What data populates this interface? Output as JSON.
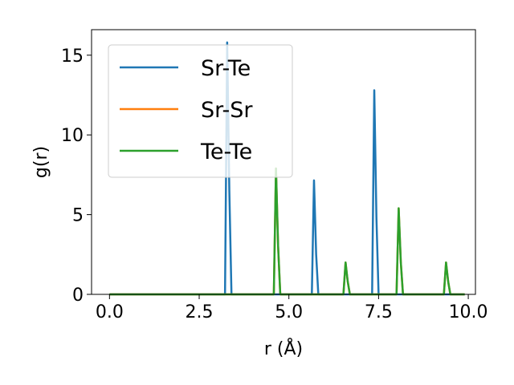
{
  "chart_data": {
    "type": "line",
    "xlabel": "r (Å)",
    "ylabel": "g(r)",
    "xlim": [
      -0.5,
      10.2
    ],
    "ylim": [
      0,
      16.6
    ],
    "x_ticks": [
      0.0,
      2.5,
      5.0,
      7.5,
      10.0
    ],
    "x_tick_labels": [
      "0.0",
      "2.5",
      "5.0",
      "7.5",
      "10.0"
    ],
    "y_ticks": [
      0,
      5,
      10,
      15
    ],
    "y_tick_labels": [
      "0",
      "5",
      "10",
      "15"
    ],
    "grid": false,
    "legend_position": "upper-left",
    "series": [
      {
        "name": "Sr-Te",
        "color": "#1f77b4",
        "x": [
          0.0,
          3.22,
          3.28,
          3.34,
          3.4,
          5.64,
          5.7,
          5.76,
          5.82,
          7.32,
          7.38,
          7.44,
          7.5,
          9.9
        ],
        "y": [
          0,
          0,
          15.8,
          6.5,
          0,
          0,
          7.15,
          2.5,
          0,
          0,
          12.8,
          4.8,
          0,
          0
        ]
      },
      {
        "name": "Sr-Sr",
        "color": "#ff7f0e",
        "x": [
          0.0,
          4.58,
          4.64,
          4.7,
          4.76,
          6.52,
          6.58,
          6.64,
          6.7,
          8.0,
          8.06,
          8.12,
          8.18,
          9.32,
          9.38,
          9.44,
          9.5,
          9.9
        ],
        "y": [
          0,
          0,
          7.9,
          3.0,
          0,
          0,
          2.0,
          0.8,
          0,
          0,
          5.4,
          2.0,
          0,
          0,
          2.0,
          0.8,
          0,
          0
        ]
      },
      {
        "name": "Te-Te",
        "color": "#2ca02c",
        "x": [
          0.0,
          4.58,
          4.64,
          4.7,
          4.76,
          6.52,
          6.58,
          6.64,
          6.7,
          8.0,
          8.06,
          8.12,
          8.18,
          9.32,
          9.38,
          9.44,
          9.5,
          9.9
        ],
        "y": [
          0,
          0,
          7.9,
          3.0,
          0,
          0,
          2.0,
          0.8,
          0,
          0,
          5.4,
          2.0,
          0,
          0,
          2.0,
          0.8,
          0,
          0
        ]
      }
    ]
  }
}
